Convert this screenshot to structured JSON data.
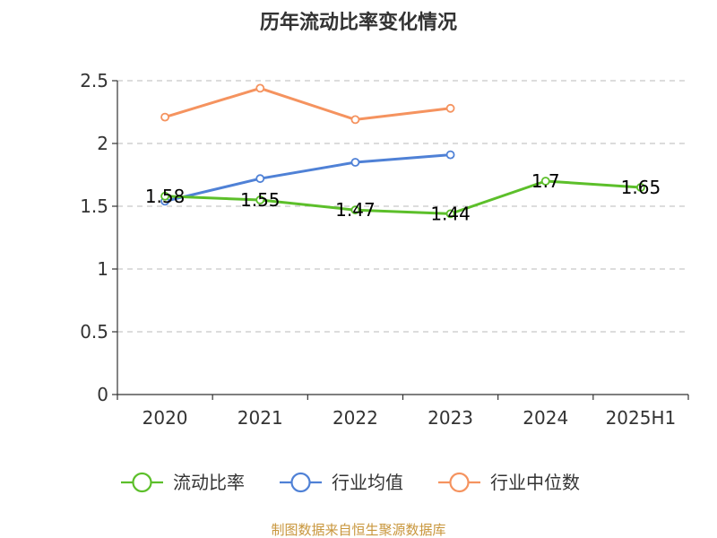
{
  "chart_data": {
    "type": "line",
    "title": "历年流动比率变化情况",
    "categories": [
      "2020",
      "2021",
      "2022",
      "2023",
      "2024",
      "2025H1"
    ],
    "ylim": [
      0,
      2.5
    ],
    "yticks": [
      "0",
      "0.5",
      "1",
      "1.5",
      "2",
      "2.5"
    ],
    "grid": true,
    "legend_position": "bottom",
    "series": [
      {
        "name": "流动比率",
        "color": "#5cbf2a",
        "values": [
          1.58,
          1.55,
          1.47,
          1.44,
          1.7,
          1.65
        ],
        "show_labels": true
      },
      {
        "name": "行业均值",
        "color": "#4f81d6",
        "values": [
          1.54,
          1.72,
          1.85,
          1.91,
          null,
          null
        ],
        "show_labels": false
      },
      {
        "name": "行业中位数",
        "color": "#f5935f",
        "values": [
          2.21,
          2.44,
          2.19,
          2.28,
          null,
          null
        ],
        "show_labels": false
      }
    ],
    "data_labels": [
      "1.58",
      "1.55",
      "1.47",
      "1.44",
      "1.7",
      "1.65"
    ]
  },
  "footer": {
    "source": "制图数据来自恒生聚源数据库",
    "source_color": "#c8963c"
  }
}
